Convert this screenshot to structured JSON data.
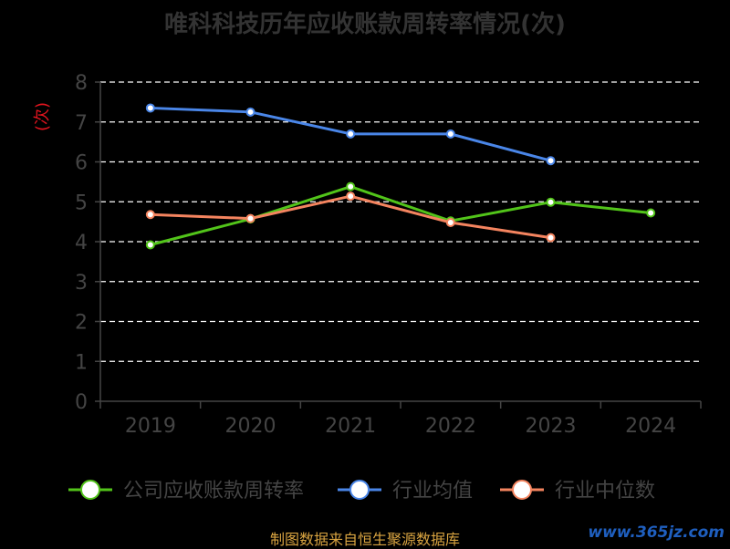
{
  "chart_data": {
    "type": "line",
    "title": "唯科科技历年应收账款周转率情况(次)",
    "ylabel": "(次)",
    "categories": [
      "2019",
      "2020",
      "2021",
      "2022",
      "2023",
      "2024"
    ],
    "ylim": [
      0,
      8
    ],
    "yticks": [
      "0",
      "1",
      "2",
      "3",
      "4",
      "5",
      "6",
      "7",
      "8"
    ],
    "grid": true,
    "legend_position": "bottom",
    "series": [
      {
        "name": "公司应收账款周转率",
        "color": "#52c41a",
        "values": [
          3.92,
          4.57,
          5.38,
          4.52,
          4.99,
          4.72
        ]
      },
      {
        "name": "行业均值",
        "color": "#4a86e8",
        "values": [
          7.35,
          7.25,
          6.7,
          6.7,
          6.03,
          null
        ]
      },
      {
        "name": "行业中位数",
        "color": "#f4845f",
        "values": [
          4.68,
          4.58,
          5.14,
          4.48,
          4.1,
          null
        ]
      }
    ]
  },
  "footer": {
    "source": "制图数据来自恒生聚源数据库",
    "watermark": "www.365jz.com"
  }
}
